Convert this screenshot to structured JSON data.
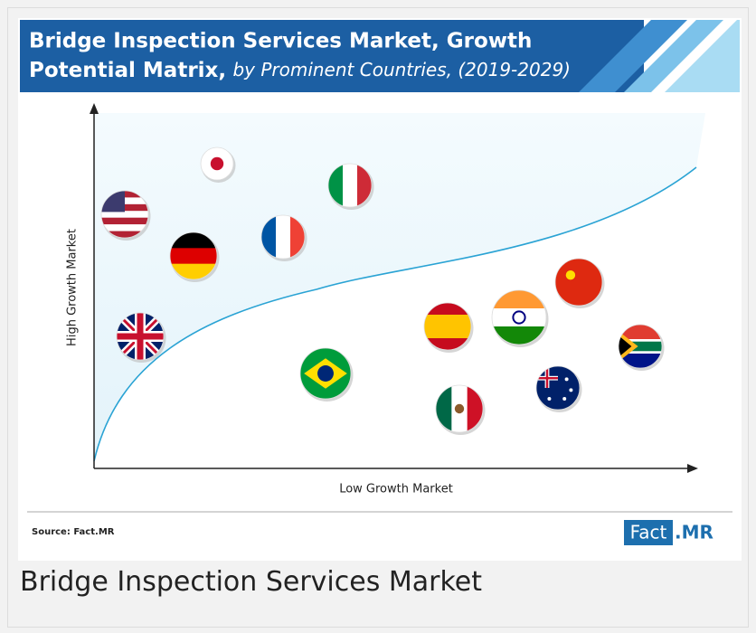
{
  "header": {
    "title_line1": "Bridge Inspection Services Market, Growth",
    "title_line2_bold": "Potential Matrix,",
    "title_line2_italic": "by Prominent Countries, (2019-2029)"
  },
  "chart": {
    "y_label": "High Growth Market",
    "x_label": "Low Growth Market"
  },
  "source": "Source: Fact.MR",
  "logo": {
    "fact": "Fact",
    "mr": ".MR"
  },
  "caption": "Bridge Inspection Services Market"
}
